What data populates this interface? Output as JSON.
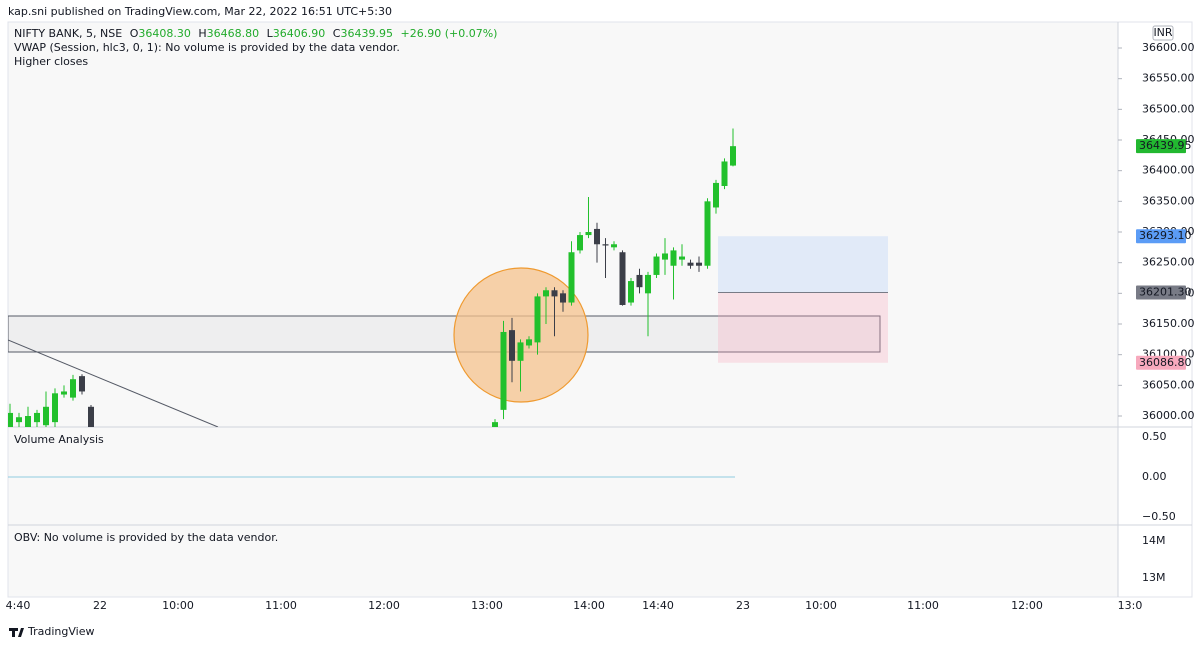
{
  "header": {
    "published": "kap.sni published on TradingView.com, Mar 22, 2022 16:51 UTC+5:30"
  },
  "legend": {
    "symbol": "NIFTY BANK, 5, NSE",
    "open": {
      "label": "O",
      "value": "36408.30"
    },
    "high": {
      "label": "H",
      "value": "36468.80"
    },
    "low": {
      "label": "L",
      "value": "36406.90"
    },
    "close": {
      "label": "C",
      "value": "36439.95"
    },
    "change": "+26.90 (+0.07%)",
    "vwap": "VWAP (Session, hlc3, 0, 1): No volume is provided by the data vendor.",
    "study": "Higher closes"
  },
  "currency": "INR",
  "price_axis": {
    "ticks": [
      {
        "value": 36600,
        "label": "36600.00"
      },
      {
        "value": 36550,
        "label": "36550.00"
      },
      {
        "value": 36500,
        "label": "36500.00"
      },
      {
        "value": 36450,
        "label": "36450.00"
      },
      {
        "value": 36400,
        "label": "36400.00"
      },
      {
        "value": 36350,
        "label": "36350.00"
      },
      {
        "value": 36300,
        "label": "36300.00"
      },
      {
        "value": 36250,
        "label": "36250.00"
      },
      {
        "value": 36200,
        "label": "36200.00"
      },
      {
        "value": 36150,
        "label": "36150.00"
      },
      {
        "value": 36100,
        "label": "36100.00"
      },
      {
        "value": 36050,
        "label": "36050.00"
      },
      {
        "value": 36000,
        "label": "36000.00"
      }
    ]
  },
  "price_tags": [
    {
      "value": 36439.95,
      "label": "36439.95",
      "color": "#22b830"
    },
    {
      "value": 36293.1,
      "label": "36293.10",
      "color": "#5b9cf6"
    },
    {
      "value": 36201.3,
      "label": "36201.30",
      "color": "#787b86"
    },
    {
      "value": 36086.8,
      "label": "36086.80",
      "color": "#f7a9bd"
    }
  ],
  "candles": [
    {
      "o": 35960,
      "h": 36020,
      "l": 35950,
      "c": 36005
    },
    {
      "o": 35990,
      "h": 36005,
      "l": 35980,
      "c": 35998
    },
    {
      "o": 35975,
      "h": 36015,
      "l": 35960,
      "c": 36000
    },
    {
      "o": 35990,
      "h": 36010,
      "l": 35980,
      "c": 36005
    },
    {
      "o": 35985,
      "h": 36040,
      "l": 35975,
      "c": 36015
    },
    {
      "o": 35990,
      "h": 36045,
      "l": 35975,
      "c": 36037
    },
    {
      "o": 36035,
      "h": 36050,
      "l": 36030,
      "c": 36040
    },
    {
      "o": 36030,
      "h": 36067,
      "l": 36025,
      "c": 36060
    },
    {
      "o": 36065,
      "h": 36068,
      "l": 36035,
      "c": 36040
    },
    {
      "o": 36015,
      "h": 36018,
      "l": 35970,
      "c": 35980
    },
    {
      "o": 35975,
      "h": 35995,
      "l": 35970,
      "c": 35990
    },
    {
      "o": 36010,
      "h": 36155,
      "l": 35995,
      "c": 36137
    },
    {
      "o": 36140,
      "h": 36160,
      "l": 36055,
      "c": 36090
    },
    {
      "o": 36090,
      "h": 36125,
      "l": 36040,
      "c": 36120
    },
    {
      "o": 36115,
      "h": 36130,
      "l": 36110,
      "c": 36125
    },
    {
      "o": 36120,
      "h": 36200,
      "l": 36100,
      "c": 36195
    },
    {
      "o": 36195,
      "h": 36210,
      "l": 36150,
      "c": 36205
    },
    {
      "o": 36205,
      "h": 36210,
      "l": 36130,
      "c": 36195
    },
    {
      "o": 36200,
      "h": 36205,
      "l": 36170,
      "c": 36185
    },
    {
      "o": 36185,
      "h": 36285,
      "l": 36180,
      "c": 36267
    },
    {
      "o": 36270,
      "h": 36300,
      "l": 36265,
      "c": 36295
    },
    {
      "o": 36295,
      "h": 36357,
      "l": 36290,
      "c": 36300
    },
    {
      "o": 36305,
      "h": 36315,
      "l": 36250,
      "c": 36280
    },
    {
      "o": 36280,
      "h": 36290,
      "l": 36225,
      "c": 36278
    },
    {
      "o": 36275,
      "h": 36285,
      "l": 36270,
      "c": 36280
    },
    {
      "o": 36267,
      "h": 36270,
      "l": 36180,
      "c": 36181
    },
    {
      "o": 36185,
      "h": 36225,
      "l": 36180,
      "c": 36220
    },
    {
      "o": 36230,
      "h": 36240,
      "l": 36200,
      "c": 36210
    },
    {
      "o": 36200,
      "h": 36235,
      "l": 36130,
      "c": 36230
    },
    {
      "o": 36230,
      "h": 36265,
      "l": 36225,
      "c": 36260
    },
    {
      "o": 36255,
      "h": 36290,
      "l": 36230,
      "c": 36265
    },
    {
      "o": 36245,
      "h": 36275,
      "l": 36190,
      "c": 36270
    },
    {
      "o": 36255,
      "h": 36280,
      "l": 36245,
      "c": 36260
    },
    {
      "o": 36250,
      "h": 36255,
      "l": 36240,
      "c": 36245
    },
    {
      "o": 36250,
      "h": 36260,
      "l": 36235,
      "c": 36245
    },
    {
      "o": 36245,
      "h": 36355,
      "l": 36240,
      "c": 36350
    },
    {
      "o": 36340,
      "h": 36385,
      "l": 36330,
      "c": 36380
    },
    {
      "o": 36375,
      "h": 36420,
      "l": 36370,
      "c": 36415
    },
    {
      "o": 36408.3,
      "h": 36468.8,
      "l": 36406.9,
      "c": 36439.95
    }
  ],
  "candle_colors": {
    "up": "#22c02c",
    "down": "#3b3e48"
  },
  "volume_pane": {
    "title": "Volume Analysis",
    "ticks": [
      {
        "value": 0.5,
        "label": "0.50"
      },
      {
        "value": 0,
        "label": "0.00"
      },
      {
        "value": -0.5,
        "label": "−0.50"
      }
    ],
    "line_value": 0,
    "line_color": "#8fcbe0"
  },
  "obv_pane": {
    "title": "OBV: No volume is provided by the data vendor.",
    "ticks": [
      {
        "value": 14000000,
        "label": "14M"
      },
      {
        "value": 13000000,
        "label": "13M"
      }
    ]
  },
  "time_axis": [
    "4:40",
    "22",
    "10:00",
    "11:00",
    "12:00",
    "13:00",
    "14:00",
    "14:40",
    "23",
    "10:00",
    "11:00",
    "12:00",
    "13:0"
  ],
  "footer": {
    "brand": "TradingView"
  }
}
